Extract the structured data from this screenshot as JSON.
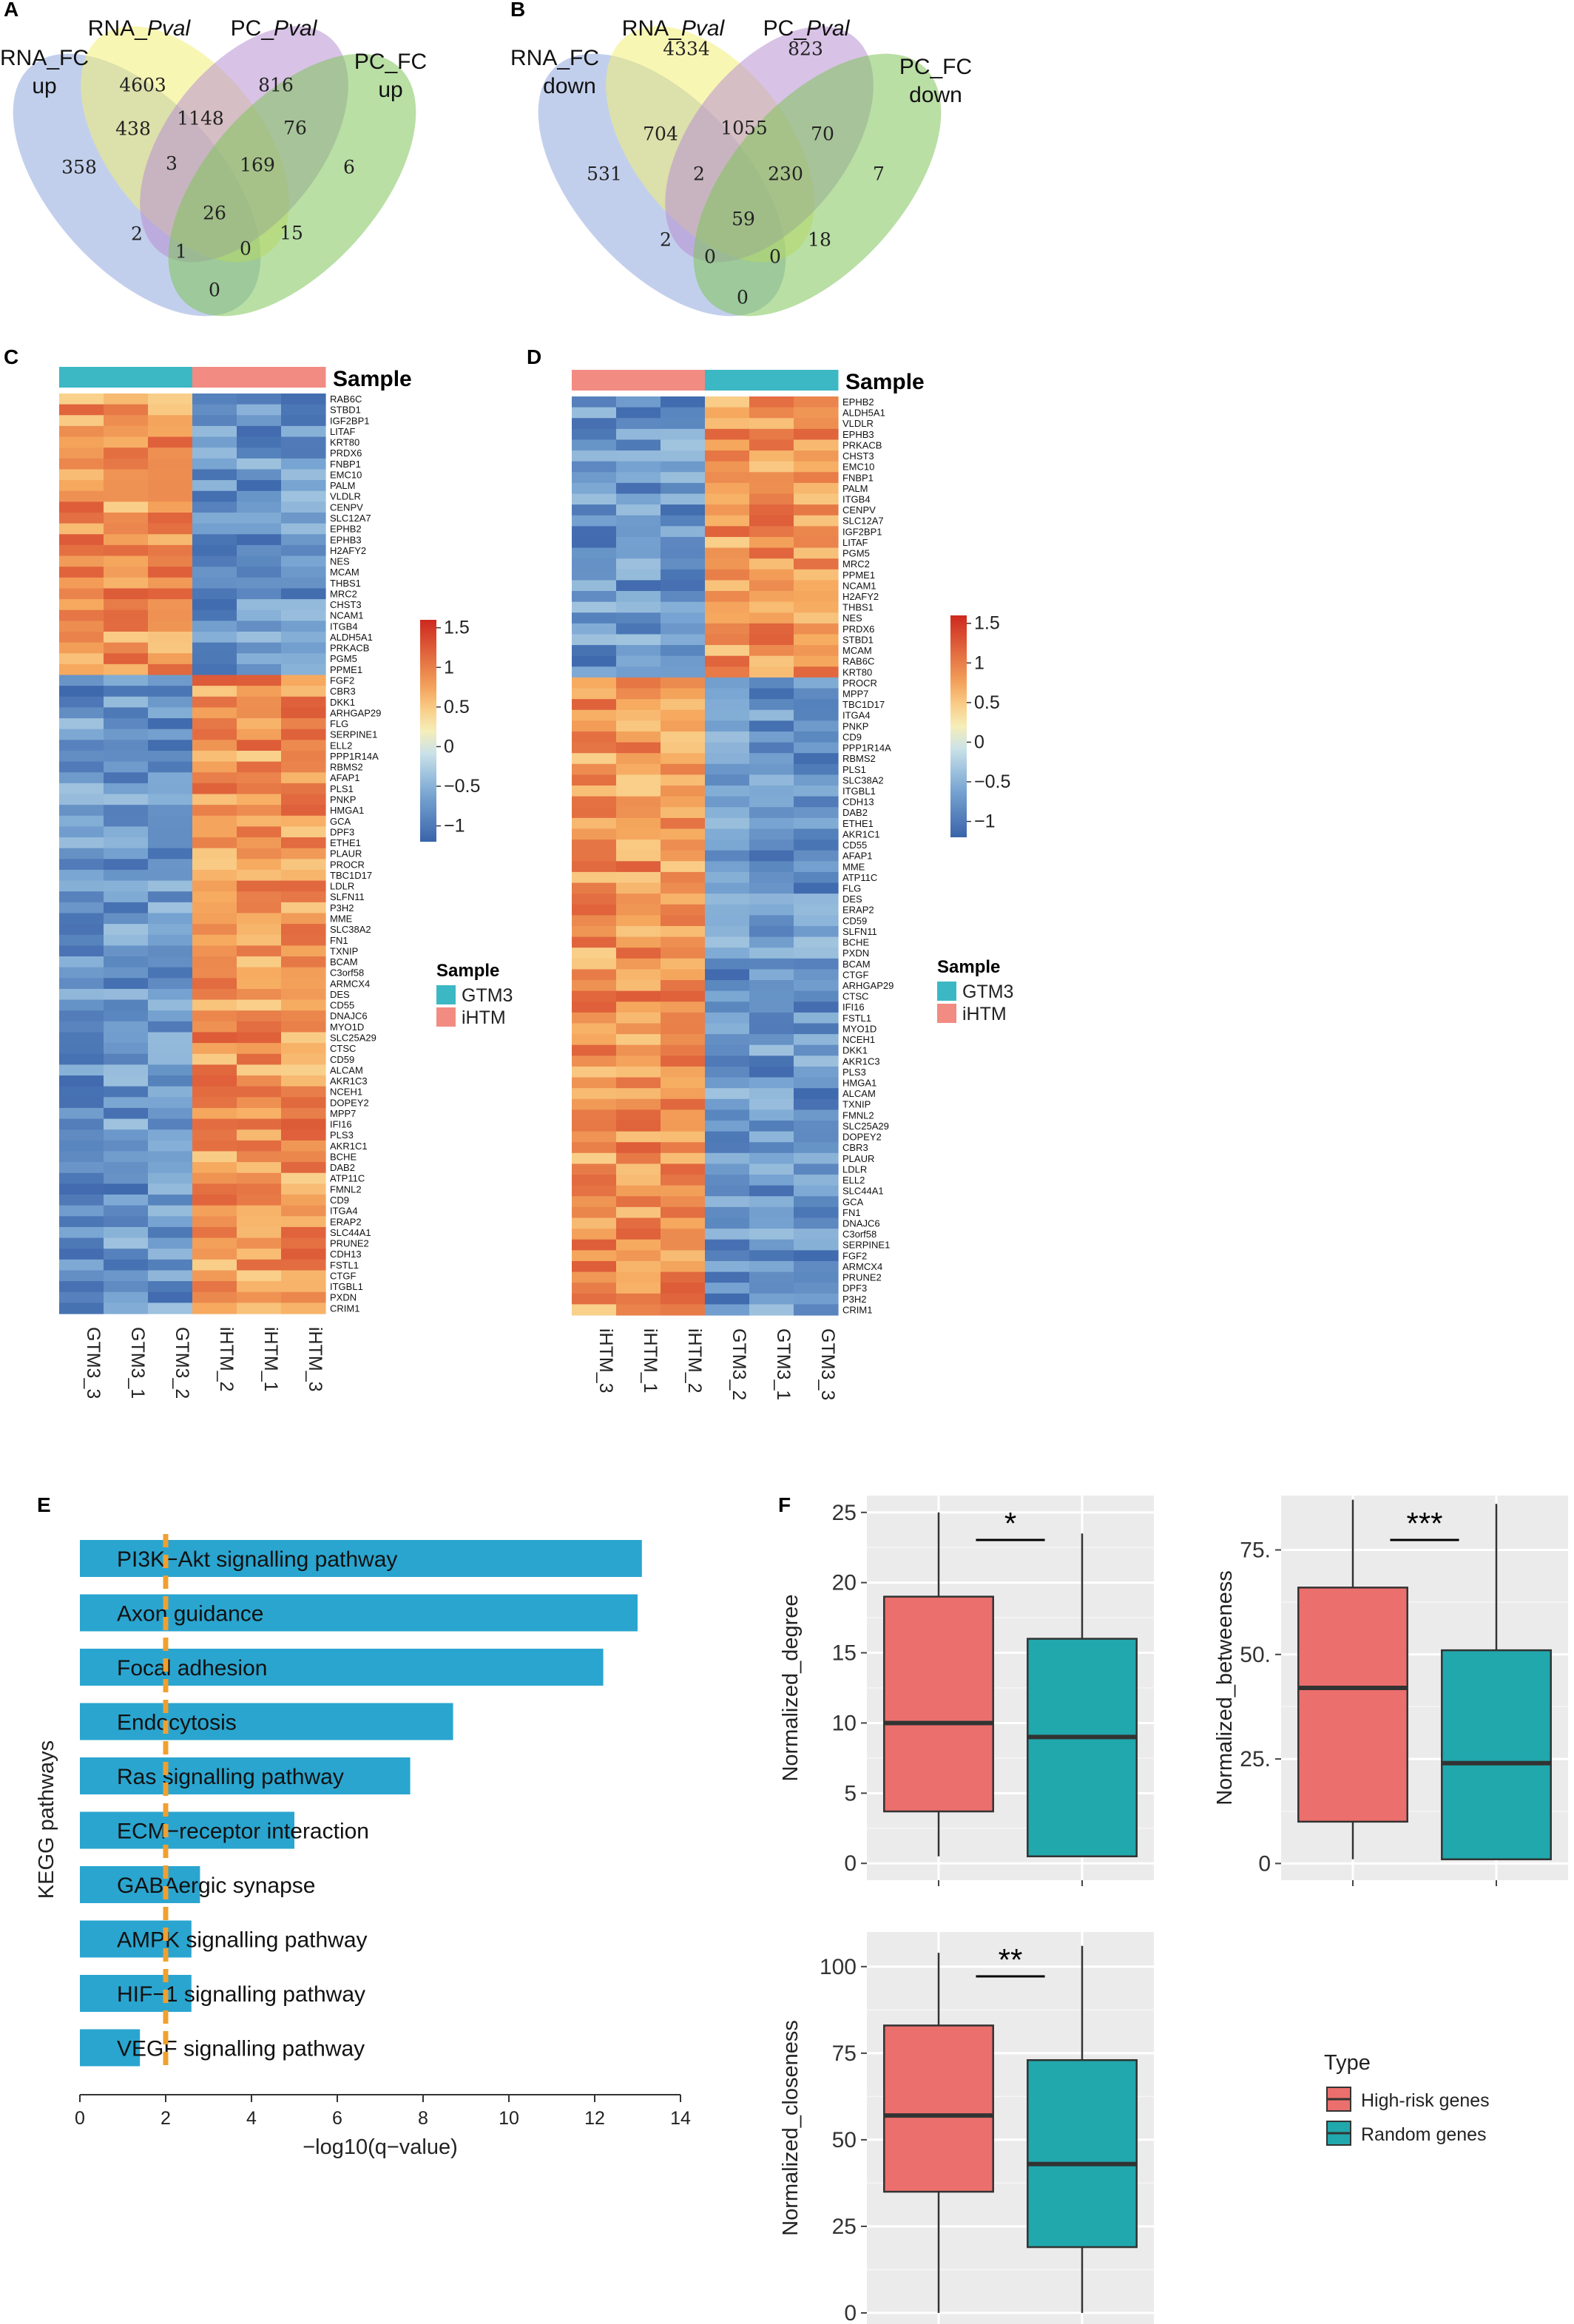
{
  "panels": {
    "A": "A",
    "B": "B",
    "C": "C",
    "D": "D",
    "E": "E",
    "F": "F"
  },
  "venn_a": {
    "labels": [
      {
        "text": "RNA_FC",
        "x": 60,
        "y": 88
      },
      {
        "text": "up",
        "x": 60,
        "y": 126
      },
      {
        "text": "RNA_",
        "italic": "Pval",
        "x": 188,
        "y": 48
      },
      {
        "text": "PC_",
        "italic": "Pval",
        "x": 370,
        "y": 48
      },
      {
        "text": "PC_FC",
        "x": 528,
        "y": 93
      },
      {
        "text": "up",
        "x": 528,
        "y": 131
      }
    ],
    "counts": [
      {
        "v": "4603",
        "x": 193,
        "y": 117
      },
      {
        "v": "816",
        "x": 373,
        "y": 117
      },
      {
        "v": "438",
        "x": 180,
        "y": 176
      },
      {
        "v": "1148",
        "x": 271,
        "y": 162
      },
      {
        "v": "76",
        "x": 399,
        "y": 175
      },
      {
        "v": "358",
        "x": 107,
        "y": 228
      },
      {
        "v": "3",
        "x": 232,
        "y": 223
      },
      {
        "v": "169",
        "x": 348,
        "y": 225
      },
      {
        "v": "6",
        "x": 472,
        "y": 228
      },
      {
        "v": "26",
        "x": 290,
        "y": 290
      },
      {
        "v": "2",
        "x": 185,
        "y": 318
      },
      {
        "v": "15",
        "x": 394,
        "y": 317
      },
      {
        "v": "1",
        "x": 245,
        "y": 342
      },
      {
        "v": "0",
        "x": 332,
        "y": 338
      },
      {
        "v": "0",
        "x": 290,
        "y": 394
      }
    ]
  },
  "venn_b": {
    "labels": [
      {
        "text": "RNA_FC",
        "x": 750,
        "y": 88
      },
      {
        "text": "down",
        "x": 770,
        "y": 126
      },
      {
        "text": "RNA_",
        "italic": "Pval",
        "x": 910,
        "y": 48
      },
      {
        "text": "PC_",
        "italic": "Pval",
        "x": 1090,
        "y": 48
      },
      {
        "text": "PC_FC",
        "x": 1265,
        "y": 100
      },
      {
        "text": "down",
        "x": 1265,
        "y": 138
      }
    ],
    "counts": [
      {
        "v": "4334",
        "x": 928,
        "y": 68
      },
      {
        "v": "823",
        "x": 1089,
        "y": 68
      },
      {
        "v": "704",
        "x": 893,
        "y": 183
      },
      {
        "v": "1055",
        "x": 1006,
        "y": 175
      },
      {
        "v": "70",
        "x": 1112,
        "y": 183
      },
      {
        "v": "531",
        "x": 817,
        "y": 237
      },
      {
        "v": "2",
        "x": 945,
        "y": 237
      },
      {
        "v": "230",
        "x": 1062,
        "y": 237
      },
      {
        "v": "7",
        "x": 1188,
        "y": 237
      },
      {
        "v": "59",
        "x": 1005,
        "y": 298
      },
      {
        "v": "2",
        "x": 900,
        "y": 326
      },
      {
        "v": "18",
        "x": 1108,
        "y": 326
      },
      {
        "v": "0",
        "x": 960,
        "y": 349
      },
      {
        "v": "0",
        "x": 1048,
        "y": 349
      },
      {
        "v": "0",
        "x": 1004,
        "y": 404
      }
    ]
  },
  "heatmap_c": {
    "sample_title": "Sample",
    "columns": [
      "GTM3_3",
      "GTM3_1",
      "GTM3_2",
      "iHTM_2",
      "iHTM_1",
      "iHTM_3"
    ],
    "column_groups": [
      "GTM3",
      "GTM3",
      "GTM3",
      "iHTM",
      "iHTM",
      "iHTM"
    ],
    "genes": [
      "RAB6C",
      "STBD1",
      "IGF2BP1",
      "LITAF",
      "KRT80",
      "PRDX6",
      "FNBP1",
      "EMC10",
      "PALM",
      "VLDLR",
      "CENPV",
      "SLC12A7",
      "EPHB2",
      "EPHB3",
      "H2AFY2",
      "NES",
      "MCAM",
      "THBS1",
      "MRC2",
      "CHST3",
      "NCAM1",
      "ITGB4",
      "ALDH5A1",
      "PRKACB",
      "PGM5",
      "PPME1",
      "FGF2",
      "CBR3",
      "DKK1",
      "ARHGAP29",
      "FLG",
      "SERPINE1",
      "ELL2",
      "PPP1R14A",
      "RBMS2",
      "AFAP1",
      "PLS1",
      "PNKP",
      "HMGA1",
      "GCA",
      "DPF3",
      "ETHE1",
      "PLAUR",
      "PROCR",
      "TBC1D17",
      "LDLR",
      "SLFN11",
      "P3H2",
      "MME",
      "SLC38A2",
      "FN1",
      "TXNIP",
      "BCAM",
      "C3orf58",
      "ARMCX4",
      "DES",
      "CD55",
      "DNAJC6",
      "MYO1D",
      "SLC25A29",
      "CTSC",
      "CD59",
      "ALCAM",
      "AKR1C3",
      "NCEH1",
      "DOPEY2",
      "MPP7",
      "IFI16",
      "PLS3",
      "AKR1C1",
      "BCHE",
      "DAB2",
      "ATP11C",
      "FMNL2",
      "CD9",
      "ITGA4",
      "ERAP2",
      "SLC44A1",
      "PRUNE2",
      "CDH13",
      "FSTL1",
      "CTGF",
      "ITGBL1",
      "PXDN",
      "CRIM1"
    ],
    "top_cluster_size": 26,
    "scale_ticks": [
      "1.5",
      "1",
      "0.5",
      "0",
      "−0.5",
      "−1"
    ],
    "legend_title": "Sample",
    "legend_items": [
      "GTM3",
      "iHTM"
    ]
  },
  "heatmap_d": {
    "sample_title": "Sample",
    "columns": [
      "iHTM_3",
      "iHTM_1",
      "iHTM_2",
      "GTM3_2",
      "GTM3_1",
      "GTM3_3"
    ],
    "column_groups": [
      "iHTM",
      "iHTM",
      "iHTM",
      "GTM3",
      "GTM3",
      "GTM3"
    ],
    "genes": [
      "EPHB2",
      "ALDH5A1",
      "VLDLR",
      "EPHB3",
      "PRKACB",
      "CHST3",
      "EMC10",
      "FNBP1",
      "PALM",
      "ITGB4",
      "CENPV",
      "SLC12A7",
      "IGF2BP1",
      "LITAF",
      "PGM5",
      "MRC2",
      "PPME1",
      "NCAM1",
      "H2AFY2",
      "THBS1",
      "NES",
      "PRDX6",
      "STBD1",
      "MCAM",
      "RAB6C",
      "KRT80",
      "PROCR",
      "MPP7",
      "TBC1D17",
      "ITGA4",
      "PNKP",
      "CD9",
      "PPP1R14A",
      "RBMS2",
      "PLS1",
      "SLC38A2",
      "ITGBL1",
      "CDH13",
      "DAB2",
      "ETHE1",
      "AKR1C1",
      "CD55",
      "AFAP1",
      "MME",
      "ATP11C",
      "FLG",
      "DES",
      "ERAP2",
      "CD59",
      "SLFN11",
      "BCHE",
      "PXDN",
      "BCAM",
      "CTGF",
      "ARHGAP29",
      "CTSC",
      "IFI16",
      "FSTL1",
      "MYO1D",
      "NCEH1",
      "DKK1",
      "AKR1C3",
      "PLS3",
      "HMGA1",
      "ALCAM",
      "TXNIP",
      "FMNL2",
      "SLC25A29",
      "DOPEY2",
      "CBR3",
      "PLAUR",
      "LDLR",
      "ELL2",
      "SLC44A1",
      "GCA",
      "FN1",
      "DNAJC6",
      "C3orf58",
      "SERPINE1",
      "FGF2",
      "ARMCX4",
      "PRUNE2",
      "DPF3",
      "P3H2",
      "CRIM1"
    ],
    "top_cluster_size": 26,
    "scale_ticks": [
      "1.5",
      "1",
      "0.5",
      "0",
      "−0.5",
      "−1"
    ],
    "legend_title": "Sample",
    "legend_items": [
      "GTM3",
      "iHTM"
    ]
  },
  "chart_data": [
    {
      "type": "bar",
      "panel": "E",
      "orientation": "horizontal",
      "categories": [
        "PI3K−Akt signalling pathway",
        "Axon guidance",
        "Focal adhesion",
        "Endocytosis",
        "Ras signalling pathway",
        "ECM−receptor interaction",
        "GABAergic synapse",
        "AMPK signalling pathway",
        "HIF−1 signalling pathway",
        "VEGF signalling pathway"
      ],
      "values": [
        13.1,
        13.0,
        12.2,
        8.7,
        7.7,
        5.0,
        2.8,
        2.6,
        2.6,
        1.4
      ],
      "threshold": 2,
      "xlabel": "−log10(q−value)",
      "ylabel": "KEGG pathways",
      "xlim": [
        0,
        14
      ],
      "xticks": [
        "0",
        "2",
        "4",
        "6",
        "8",
        "10",
        "12",
        "14"
      ],
      "grid": false,
      "colors": {
        "bar": "#2aa5cf",
        "threshold": "#f0a030"
      }
    },
    {
      "type": "box",
      "panel": "F",
      "ylabel": "Normalized_degree",
      "ylim": [
        -1.2,
        26.2
      ],
      "yticks": [
        "0",
        "5",
        "10",
        "15",
        "20",
        "25"
      ],
      "ytick_values": [
        0,
        5,
        10,
        15,
        20,
        25
      ],
      "significance": "*",
      "series": [
        {
          "name": "High-risk genes",
          "min": 0.5,
          "q1": 3.7,
          "median": 10,
          "q3": 19,
          "max": 25
        },
        {
          "name": "Random genes",
          "min": 0.5,
          "q1": 0.5,
          "median": 9,
          "q3": 16,
          "max": 23.5
        }
      ],
      "grid": true
    },
    {
      "type": "box",
      "panel": "F",
      "ylabel": "Normalized_betweeness",
      "ylim": [
        -4,
        88
      ],
      "yticks": [
        "0",
        "25.",
        "50.",
        "75."
      ],
      "ytick_values": [
        0,
        25,
        50,
        75
      ],
      "significance": "***",
      "series": [
        {
          "name": "High-risk genes",
          "min": 1,
          "q1": 10,
          "median": 42,
          "q3": 66,
          "max": 87
        },
        {
          "name": "Random genes",
          "min": 1,
          "q1": 1,
          "median": 24,
          "q3": 51,
          "max": 86
        }
      ],
      "grid": true
    },
    {
      "type": "box",
      "panel": "F",
      "ylabel": "Normalized_closeness",
      "ylim": [
        -3.2,
        110
      ],
      "yticks": [
        "0",
        "25",
        "50",
        "75",
        "100"
      ],
      "ytick_values": [
        0,
        25,
        50,
        75,
        100
      ],
      "significance": "**",
      "series": [
        {
          "name": "High-risk genes",
          "min": 0,
          "q1": 35,
          "median": 57,
          "q3": 83,
          "max": 104
        },
        {
          "name": "Random genes",
          "min": 0,
          "q1": 19,
          "median": 43,
          "q3": 73,
          "max": 106
        }
      ],
      "grid": true
    }
  ],
  "box_legend": {
    "title": "Type",
    "items": [
      "High-risk genes",
      "Random genes"
    ]
  },
  "colors": {
    "gtm3": "#3bb8c4",
    "ihtm": "#f28b82",
    "high_risk": "#eb6f6c",
    "random": "#20a8ad",
    "panel_bg": "#ebebeb",
    "venn": [
      "#8fa8dd",
      "#f2ee74",
      "#b890d2",
      "#7fc45a"
    ]
  }
}
